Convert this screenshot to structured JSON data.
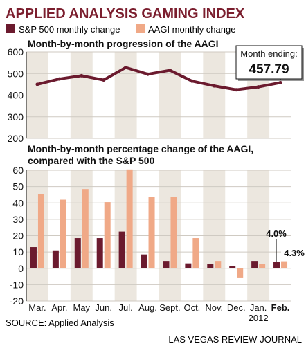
{
  "header": {
    "title": "APPLIED ANALYSIS GAMING INDEX",
    "source": "SOURCE: Applied Analysis",
    "credit": "LAS VEGAS REVIEW-JOURNAL"
  },
  "colors": {
    "title": "#7b1e2e",
    "sp500": "#6b1a2e",
    "aagi": "#f0a987",
    "line": "#6b1a2e",
    "band": "#ece7df"
  },
  "legend": {
    "sp500": "S&P 500 monthly change",
    "aagi": "AAGI monthly change"
  },
  "chart_data": [
    {
      "type": "line",
      "title": "Month-by-month progression of the AAGI",
      "categories": [
        "Mar.",
        "Apr.",
        "May",
        "Jun.",
        "Jul.",
        "Aug.",
        "Sept.",
        "Oct.",
        "Nov.",
        "Dec.",
        "Jan.",
        "Feb."
      ],
      "values": [
        450,
        475,
        490,
        470,
        528,
        497,
        515,
        465,
        443,
        425,
        438,
        457.79
      ],
      "ylim": [
        200,
        600
      ],
      "yticks": [
        "200",
        "300",
        "400",
        "500",
        "600"
      ],
      "callout": {
        "label": "Month ending:",
        "value": "457.79"
      },
      "grid": true
    },
    {
      "type": "bar",
      "title": "Month-by-month percentage change of the AAGI,",
      "subtitle": "compared with the S&P 500",
      "categories": [
        "Mar.",
        "Apr.",
        "May",
        "Jun.",
        "Jul.",
        "Aug.",
        "Sept.",
        "Oct.",
        "Nov.",
        "Dec.",
        "Jan.",
        "Feb."
      ],
      "year_label": "2012",
      "series": [
        {
          "name": "S&P 500 monthly change",
          "values": [
            13,
            11,
            18.5,
            18.5,
            22.5,
            8.5,
            4.5,
            3,
            2.5,
            1.5,
            4.5,
            4.0
          ]
        },
        {
          "name": "AAGI monthly change",
          "values": [
            45.5,
            42,
            48.5,
            40.5,
            60.5,
            43.5,
            43.5,
            18.5,
            4.5,
            -6,
            2.5,
            4.3
          ]
        }
      ],
      "ylim": [
        -20,
        60
      ],
      "yticks": [
        "-20",
        "-10",
        "0",
        "10",
        "20",
        "30",
        "40",
        "50",
        "60"
      ],
      "annotations": [
        "4.0%",
        "4.3%"
      ],
      "grid": true
    }
  ]
}
